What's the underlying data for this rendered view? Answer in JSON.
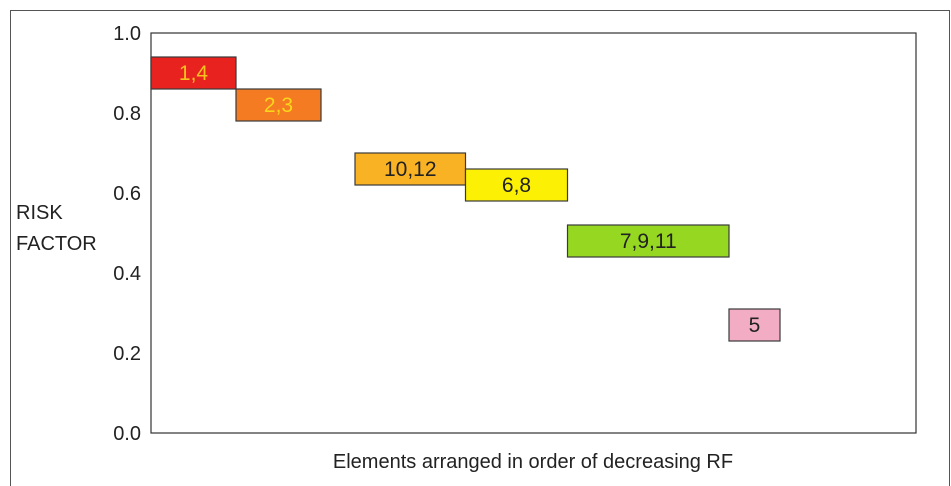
{
  "chart_data": {
    "type": "bar",
    "title": "",
    "xlabel": "Elements arranged in order of decreasing RF",
    "ylabel": [
      "RISK",
      "FACTOR"
    ],
    "ylim": [
      0,
      1.0
    ],
    "yticks": [
      "0.0",
      "0.2",
      "0.4",
      "0.6",
      "0.8",
      "1.0"
    ],
    "ytick_values": [
      0.0,
      0.2,
      0.4,
      0.6,
      0.8,
      1.0
    ],
    "grid": false,
    "legend": "none",
    "floating_bars": [
      {
        "label": "1,4",
        "x_start": 0,
        "x_end": 1,
        "y_low": 0.86,
        "y_high": 0.94,
        "color": "#e8231f",
        "text_color": "#f6c21d"
      },
      {
        "label": "2,3",
        "x_start": 1,
        "x_end": 2,
        "y_low": 0.78,
        "y_high": 0.86,
        "color": "#f47b22",
        "text_color": "#fbd51c"
      },
      {
        "label": "10,12",
        "x_start": 2.4,
        "x_end": 3.7,
        "y_low": 0.62,
        "y_high": 0.7,
        "color": "#f9b224",
        "text_color": "#222222"
      },
      {
        "label": "6,8",
        "x_start": 3.7,
        "x_end": 4.9,
        "y_low": 0.58,
        "y_high": 0.66,
        "color": "#fcf004",
        "text_color": "#222222"
      },
      {
        "label": "7,9,11",
        "x_start": 4.9,
        "x_end": 6.8,
        "y_low": 0.44,
        "y_high": 0.52,
        "color": "#96d721",
        "text_color": "#222222"
      },
      {
        "label": "5",
        "x_start": 6.8,
        "x_end": 7.4,
        "y_low": 0.23,
        "y_high": 0.31,
        "color": "#f2adc4",
        "text_color": "#222222"
      }
    ],
    "xlim": [
      0,
      9.2
    ]
  }
}
